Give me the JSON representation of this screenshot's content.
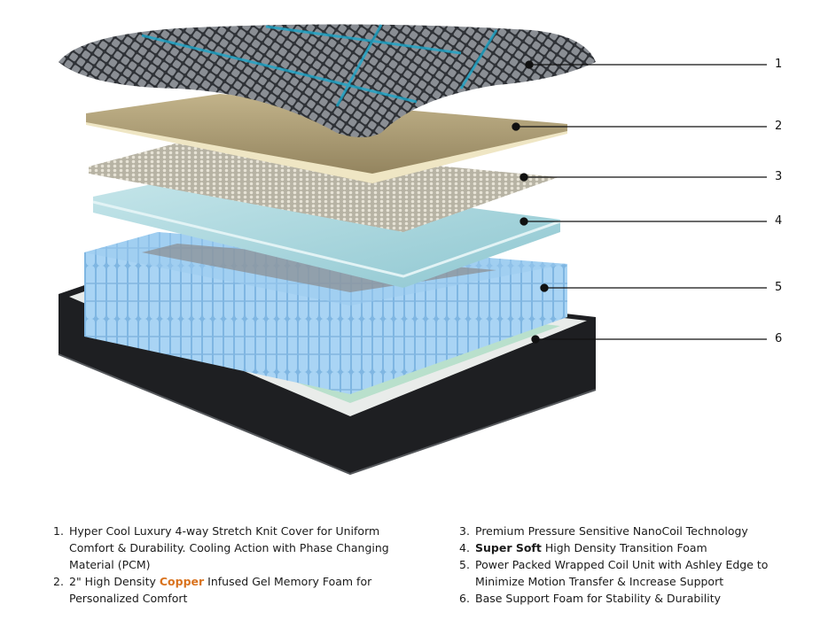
{
  "callouts": [
    "1",
    "2",
    "3",
    "4",
    "5",
    "6"
  ],
  "features_left": [
    {
      "num": "1.",
      "text": "Hyper Cool Luxury 4-way Stretch Knit Cover for Uniform Comfort & Durability. Cooling Action with Phase Changing Material (PCM)"
    },
    {
      "num": "2.",
      "pre": "2\" High Density ",
      "highlight": "Copper",
      "post": " Infused Gel Memory Foam for Personalized Comfort"
    }
  ],
  "features_right": [
    {
      "num": "3.",
      "text": "Premium Pressure Sensitive NanoCoil Technology"
    },
    {
      "num": "4.",
      "highlight": "Super Soft",
      "post": " High Density Transition Foam"
    },
    {
      "num": "5.",
      "text": "Power Packed Wrapped Coil Unit with Ashley Edge to Minimize Motion Transfer & Increase Support"
    },
    {
      "num": "6.",
      "text": "Base Support Foam for Stability & Durability"
    }
  ],
  "colors": {
    "highlight": "#d9731f",
    "cover": "#3a3d42",
    "cover_accent": "#1ba6c9",
    "copper_foam": "#cdbf9a",
    "transition_foam": "#a8d3da",
    "coils": "#8cc3ea",
    "base": "#1e1f22",
    "base_foam": "#b9e0cc"
  }
}
